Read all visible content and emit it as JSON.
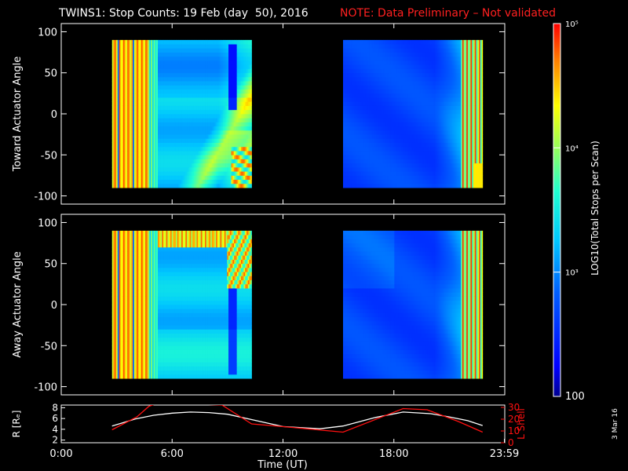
{
  "header": {
    "title": "TWINS1: Stop Counts: 19 Feb (day  50), 2016",
    "note": "NOTE: Data Preliminary – Not validated"
  },
  "footer": {
    "date_stamp": "3 Mar 16"
  },
  "colors": {
    "background": "#000000",
    "note_red": "#ff2020",
    "r_line": "#ffffff",
    "l_shell_line": "#ff1010"
  },
  "chart_data": [
    {
      "type": "heatmap",
      "name_hint": "top-panel",
      "ylabel": "Toward Actuator Angle",
      "ylim": [
        -110,
        110
      ],
      "y_ticks": [
        -100,
        -50,
        0,
        50,
        100
      ],
      "xlim_hours": [
        0,
        24
      ],
      "data_blocks_hours": [
        [
          2.75,
          10.3
        ],
        [
          15.25,
          22.8
        ]
      ],
      "data_angle_range": [
        -90,
        90
      ],
      "features": [
        "hot orange/red vertical stripes 2.75-4.7h",
        "narrow blue depletion near 9.3h, 10 to 80 deg",
        "diagonal cyan/yellow band rising from 6h to 9.8h",
        "second block mostly blue, rising to cyan/yellow and orange stripes after 21.6h"
      ]
    },
    {
      "type": "heatmap",
      "name_hint": "middle-panel",
      "ylabel": "Away Actuator Angle",
      "ylim": [
        -110,
        110
      ],
      "y_ticks": [
        -100,
        -50,
        0,
        50,
        100
      ],
      "xlim_hours": [
        0,
        24
      ],
      "data_blocks_hours": [
        [
          2.75,
          10.3
        ],
        [
          15.25,
          22.8
        ]
      ],
      "data_angle_range": [
        -90,
        90
      ],
      "features": [
        "orange stripe band along +80 deg",
        "narrow blue depletion near 9.3h, -80 to 30 deg",
        "second block blue with orange stripes after 21.8h"
      ]
    },
    {
      "type": "line",
      "name_hint": "orbit-panel",
      "xlabel": "Time (UT)",
      "x_tick_labels": [
        "0:00",
        "6:00",
        "12:00",
        "18:00",
        "23:59"
      ],
      "x_tick_hours": [
        0,
        6,
        12,
        18,
        23.98
      ],
      "y_left_label": "R [Rₑ]",
      "y_left_ticks": [
        2,
        4,
        6,
        8
      ],
      "y_left_lim": [
        1.5,
        8.5
      ],
      "y_right_label": "L Shell",
      "y_right_ticks": [
        0,
        10,
        20,
        30
      ],
      "y_right_lim": [
        0,
        32
      ],
      "series": [
        {
          "name": "R",
          "axis": "left",
          "x": [
            2.75,
            4,
            5,
            6,
            7,
            8,
            9,
            10.3,
            12,
            14,
            15.25,
            17,
            18.5,
            20,
            21,
            22,
            22.8
          ],
          "values": [
            4.6,
            5.9,
            6.6,
            7.0,
            7.2,
            7.1,
            6.8,
            5.8,
            4.5,
            4.1,
            4.6,
            6.2,
            7.2,
            6.9,
            6.3,
            5.6,
            4.7
          ]
        },
        {
          "name": "L Shell",
          "axis": "right",
          "x": [
            2.75,
            4.1,
            4.75,
            5.3,
            8.7,
            10.3,
            12.5,
            15.25,
            18.5,
            19.8,
            21.5,
            22.8
          ],
          "values": [
            11,
            22,
            31,
            34,
            32,
            16,
            13,
            9,
            29,
            28,
            18,
            9
          ]
        }
      ]
    },
    {
      "type": "heatmap",
      "name_hint": "colorbar",
      "label": "LOG10(Total Stops per Scan)",
      "scale": "log",
      "range": [
        100,
        100000
      ],
      "tick_labels": [
        "100",
        "10³",
        "10⁴",
        "10⁵"
      ],
      "tick_values": [
        100,
        1000,
        10000,
        100000
      ]
    }
  ]
}
